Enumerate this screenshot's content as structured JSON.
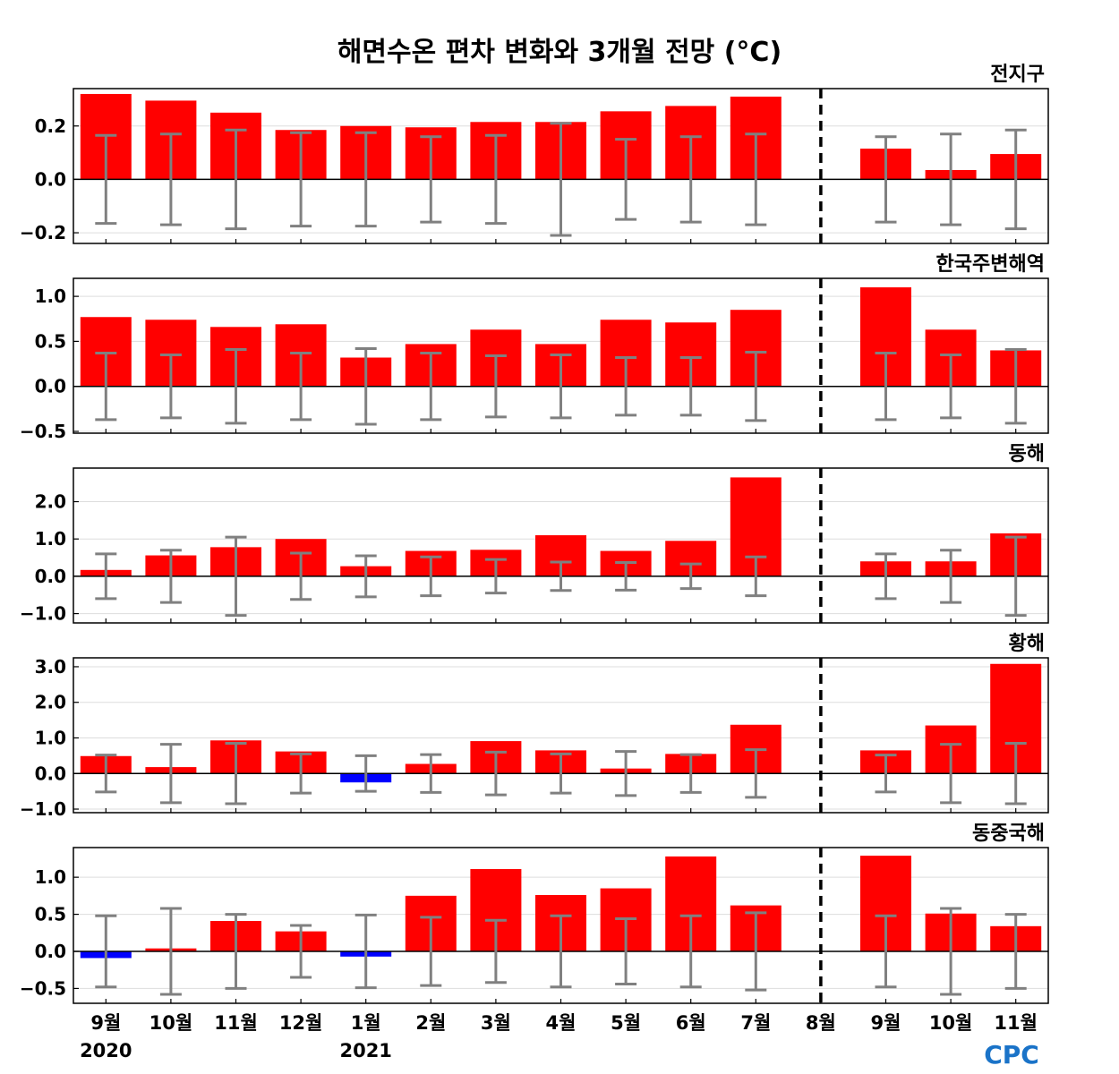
{
  "chart_data": {
    "type": "bar",
    "title": "해면수온 편차 변화와 3개월 전망 (°C)",
    "x_labels": [
      "9월",
      "10월",
      "11월",
      "12월",
      "1월",
      "2월",
      "3월",
      "4월",
      "5월",
      "6월",
      "7월",
      "8월",
      "9월",
      "10월",
      "11월"
    ],
    "year_labels": [
      {
        "index": 0,
        "label": "2020"
      },
      {
        "index": 4,
        "label": "2021"
      }
    ],
    "separator_after_label": "8월",
    "colors": {
      "positive": "#ff0000",
      "negative": "#0000ff",
      "error_bar": "#808080",
      "grid": "#dddddd"
    },
    "logo": "CPC",
    "panels": [
      {
        "name": "전지구",
        "ylim": [
          -0.24,
          0.34
        ],
        "yticks": [
          -0.2,
          0.0,
          0.2
        ],
        "ytick_labels": [
          "−0.2",
          "0.0",
          "0.2"
        ],
        "values": [
          0.32,
          0.295,
          0.25,
          0.185,
          0.2,
          0.195,
          0.215,
          0.215,
          0.255,
          0.275,
          0.31,
          0.0,
          0.115,
          0.035,
          0.095
        ],
        "error_low": [
          -0.165,
          -0.17,
          -0.185,
          -0.175,
          -0.175,
          -0.16,
          -0.165,
          -0.21,
          -0.15,
          -0.16,
          -0.17,
          null,
          -0.16,
          -0.17,
          -0.185
        ],
        "error_high": [
          0.165,
          0.17,
          0.185,
          0.175,
          0.175,
          0.16,
          0.165,
          0.21,
          0.15,
          0.16,
          0.17,
          null,
          0.16,
          0.17,
          0.185
        ]
      },
      {
        "name": "한국주변해역",
        "ylim": [
          -0.52,
          1.2
        ],
        "yticks": [
          -0.5,
          0.0,
          0.5,
          1.0
        ],
        "ytick_labels": [
          "−0.5",
          "0.0",
          "0.5",
          "1.0"
        ],
        "values": [
          0.77,
          0.74,
          0.66,
          0.69,
          0.32,
          0.47,
          0.63,
          0.47,
          0.74,
          0.71,
          0.85,
          0.0,
          1.1,
          0.63,
          0.4
        ],
        "error_low": [
          -0.37,
          -0.35,
          -0.41,
          -0.37,
          -0.42,
          -0.37,
          -0.34,
          -0.35,
          -0.32,
          -0.32,
          -0.38,
          null,
          -0.37,
          -0.35,
          -0.41
        ],
        "error_high": [
          0.37,
          0.35,
          0.41,
          0.37,
          0.42,
          0.37,
          0.34,
          0.35,
          0.32,
          0.32,
          0.38,
          null,
          0.37,
          0.35,
          0.41
        ]
      },
      {
        "name": "동해",
        "ylim": [
          -1.25,
          2.9
        ],
        "yticks": [
          -1.0,
          0.0,
          1.0,
          2.0
        ],
        "ytick_labels": [
          "−1.0",
          "0.0",
          "1.0",
          "2.0"
        ],
        "values": [
          0.17,
          0.56,
          0.78,
          1.0,
          0.27,
          0.68,
          0.71,
          1.1,
          0.68,
          0.95,
          2.65,
          0.0,
          0.4,
          0.4,
          1.15
        ],
        "error_low": [
          -0.6,
          -0.7,
          -1.05,
          -0.62,
          -0.55,
          -0.52,
          -0.45,
          -0.38,
          -0.37,
          -0.33,
          -0.52,
          null,
          -0.6,
          -0.7,
          -1.05
        ],
        "error_high": [
          0.6,
          0.7,
          1.05,
          0.62,
          0.55,
          0.52,
          0.45,
          0.38,
          0.37,
          0.33,
          0.52,
          null,
          0.6,
          0.7,
          1.05
        ]
      },
      {
        "name": "황해",
        "ylim": [
          -1.1,
          3.25
        ],
        "yticks": [
          -1.0,
          0.0,
          1.0,
          2.0,
          3.0
        ],
        "ytick_labels": [
          "−1.0",
          "0.0",
          "1.0",
          "2.0",
          "3.0"
        ],
        "values": [
          0.49,
          0.18,
          0.93,
          0.62,
          -0.25,
          0.27,
          0.91,
          0.65,
          0.14,
          0.55,
          1.37,
          0.0,
          0.65,
          1.35,
          3.08
        ],
        "error_low": [
          -0.52,
          -0.82,
          -0.85,
          -0.55,
          -0.5,
          -0.53,
          -0.6,
          -0.55,
          -0.62,
          -0.53,
          -0.67,
          null,
          -0.52,
          -0.82,
          -0.85
        ],
        "error_high": [
          0.52,
          0.82,
          0.85,
          0.55,
          0.5,
          0.53,
          0.6,
          0.55,
          0.62,
          0.53,
          0.67,
          null,
          0.52,
          0.82,
          0.85
        ]
      },
      {
        "name": "동중국해",
        "ylim": [
          -0.7,
          1.4
        ],
        "yticks": [
          -0.5,
          0.0,
          0.5,
          1.0
        ],
        "ytick_labels": [
          "−0.5",
          "0.0",
          "0.5",
          "1.0"
        ],
        "values": [
          -0.09,
          0.04,
          0.41,
          0.27,
          -0.07,
          0.75,
          1.11,
          0.76,
          0.85,
          1.28,
          0.62,
          0.0,
          1.29,
          0.51,
          0.34
        ],
        "error_low": [
          -0.48,
          -0.58,
          -0.5,
          -0.35,
          -0.49,
          -0.46,
          -0.42,
          -0.48,
          -0.44,
          -0.48,
          -0.52,
          null,
          -0.48,
          -0.58,
          -0.5
        ],
        "error_high": [
          0.48,
          0.58,
          0.5,
          0.35,
          0.49,
          0.46,
          0.42,
          0.48,
          0.44,
          0.48,
          0.52,
          null,
          0.48,
          0.58,
          0.5
        ]
      }
    ]
  }
}
